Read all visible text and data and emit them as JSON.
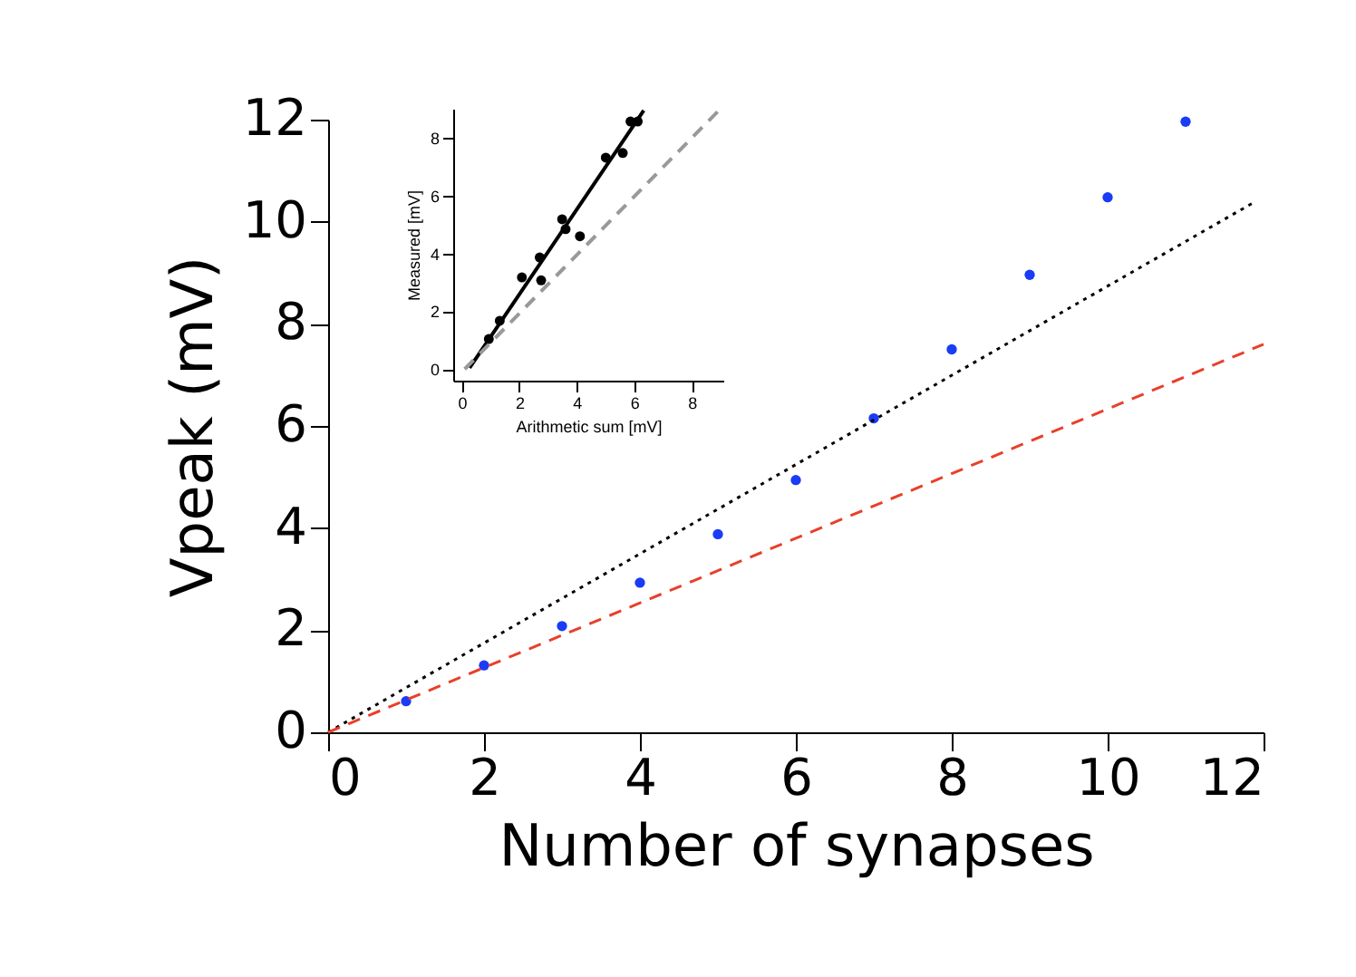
{
  "chart_data": [
    {
      "type": "scatter",
      "xlabel": "Number of synapses",
      "ylabel": "Vpeak (mV)",
      "xlim": [
        0,
        12
      ],
      "ylim": [
        0,
        12
      ],
      "xticks": [
        0,
        2,
        4,
        6,
        8,
        10,
        12
      ],
      "yticks": [
        0,
        2,
        4,
        6,
        8,
        10,
        12
      ],
      "grid": false,
      "series": [
        {
          "marker": "circle",
          "color": "#1a3cf5",
          "x": [
            1,
            2,
            3,
            4,
            5,
            6,
            7,
            8,
            9,
            10,
            11
          ],
          "values": [
            0.61,
            1.31,
            2.08,
            2.93,
            3.88,
            4.94,
            6.15,
            7.5,
            8.96,
            10.48,
            11.96
          ]
        },
        {
          "type": "line",
          "line_style": "dotted",
          "marker": "none",
          "color": "#000000",
          "x": [
            0,
            11.9
          ],
          "values": [
            0,
            10.4
          ]
        },
        {
          "type": "line",
          "line_style": "dashed",
          "marker": "none",
          "color": "#e8402a",
          "x": [
            0,
            12
          ],
          "values": [
            0,
            7.6
          ]
        }
      ]
    },
    {
      "type": "scatter",
      "xlabel": "Arithmetic sum [mV]",
      "ylabel": "Measured [mV]",
      "xlim": [
        -0.3,
        9.1
      ],
      "ylim": [
        -0.4,
        9.0
      ],
      "xticks": [
        0,
        2,
        4,
        6,
        8
      ],
      "yticks": [
        0,
        2,
        4,
        6,
        8
      ],
      "grid": false,
      "series": [
        {
          "marker": "circle",
          "color": "#000000",
          "x": [
            0.94,
            1.32,
            2.09,
            2.76,
            2.71,
            3.49,
            3.61,
            4.11,
            5.01,
            5.6,
            5.87,
            6.12
          ],
          "values": [
            1.04,
            1.67,
            3.17,
            3.07,
            3.86,
            5.18,
            4.84,
            4.59,
            7.31,
            7.47,
            8.56,
            8.56
          ]
        },
        {
          "type": "line",
          "line_style": "solid",
          "marker": "none",
          "color": "#000000",
          "x": [
            0.27,
            6.33
          ],
          "values": [
            0.04,
            8.94
          ]
        },
        {
          "type": "line",
          "line_style": "dashed",
          "marker": "none",
          "color": "#999999",
          "x": [
            0.1,
            9.0
          ],
          "values": [
            0.0,
            9.0
          ]
        }
      ]
    }
  ]
}
